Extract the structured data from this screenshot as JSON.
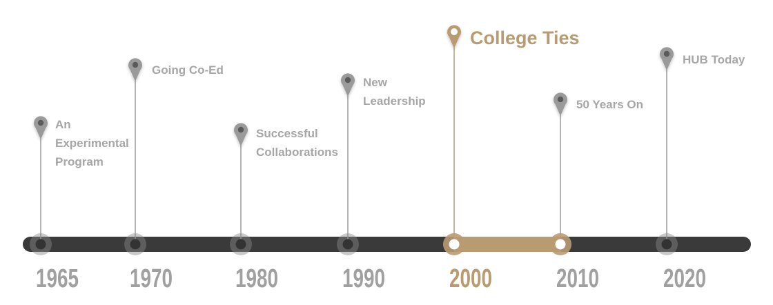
{
  "timeline": {
    "colors": {
      "track": "#3a3a3a",
      "accent": "#b99b72",
      "inactive_pin": "#9a9a9a",
      "inactive_text": "#a6a6a6"
    },
    "active_range": [
      "2000",
      "2010"
    ],
    "milestones": [
      {
        "year": "1965",
        "label_lines": [
          "An",
          "Experimental",
          "Program"
        ],
        "active": false
      },
      {
        "year": "1970",
        "label_lines": [
          "Going Co-Ed"
        ],
        "active": false
      },
      {
        "year": "1980",
        "label_lines": [
          "Successful",
          "Collaborations"
        ],
        "active": false
      },
      {
        "year": "1990",
        "label_lines": [
          "New",
          "Leadership"
        ],
        "active": false
      },
      {
        "year": "2000",
        "label_lines": [
          "College Ties"
        ],
        "active": true
      },
      {
        "year": "2010",
        "label_lines": [
          "50 Years On"
        ],
        "active": false
      },
      {
        "year": "2020",
        "label_lines": [
          "HUB Today"
        ],
        "active": false
      }
    ]
  }
}
